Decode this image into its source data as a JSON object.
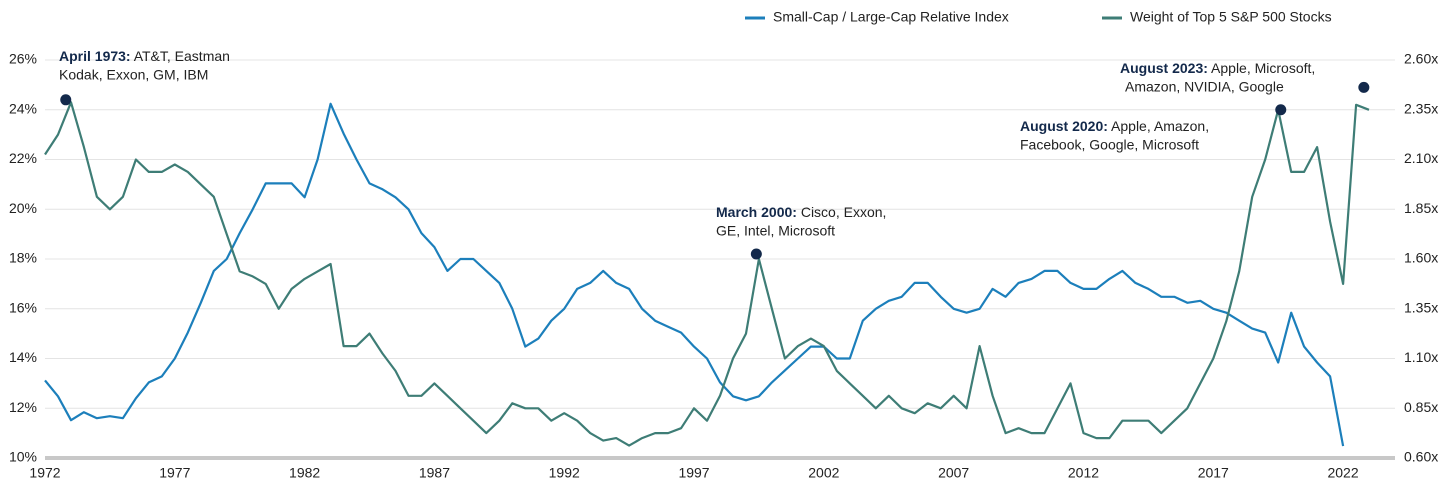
{
  "chart_data": {
    "type": "line",
    "x": [
      1972,
      1972.5,
      1973,
      1973.5,
      1974,
      1974.5,
      1975,
      1975.5,
      1976,
      1976.5,
      1977,
      1977.5,
      1978,
      1978.5,
      1979,
      1979.5,
      1980,
      1980.5,
      1981,
      1981.5,
      1982,
      1982.5,
      1983,
      1983.5,
      1984,
      1984.5,
      1985,
      1985.5,
      1986,
      1986.5,
      1987,
      1987.5,
      1988,
      1988.5,
      1989,
      1989.5,
      1990,
      1990.5,
      1991,
      1991.5,
      1992,
      1992.5,
      1993,
      1993.5,
      1994,
      1994.5,
      1995,
      1995.5,
      1996,
      1996.5,
      1997,
      1997.5,
      1998,
      1998.5,
      1999,
      1999.5,
      2000,
      2000.5,
      2001,
      2001.5,
      2002,
      2002.5,
      2003,
      2003.5,
      2004,
      2004.5,
      2005,
      2005.5,
      2006,
      2006.5,
      2007,
      2007.5,
      2008,
      2008.5,
      2009,
      2009.5,
      2010,
      2010.5,
      2011,
      2011.5,
      2012,
      2012.5,
      2013,
      2013.5,
      2014,
      2014.5,
      2015,
      2015.5,
      2016,
      2016.5,
      2017,
      2017.5,
      2018,
      2018.5,
      2019,
      2019.5,
      2020,
      2020.5,
      2021,
      2021.5,
      2022,
      2022.5,
      2023
    ],
    "series": [
      {
        "name": "Small-Cap / Large-Cap Relative Index",
        "color": "#1c7fbb",
        "axis": "y2",
        "values": [
          0.99,
          0.91,
          0.79,
          0.83,
          0.8,
          0.81,
          0.8,
          0.9,
          0.98,
          1.01,
          1.1,
          1.23,
          1.38,
          1.54,
          1.6,
          1.73,
          1.85,
          1.98,
          1.98,
          1.98,
          1.91,
          2.1,
          2.38,
          2.23,
          2.1,
          1.98,
          1.95,
          1.91,
          1.85,
          1.73,
          1.66,
          1.54,
          1.6,
          1.6,
          1.54,
          1.48,
          1.35,
          1.16,
          1.2,
          1.29,
          1.35,
          1.45,
          1.48,
          1.54,
          1.48,
          1.45,
          1.35,
          1.29,
          1.26,
          1.23,
          1.16,
          1.1,
          0.98,
          0.91,
          0.89,
          0.91,
          0.98,
          1.04,
          1.1,
          1.16,
          1.16,
          1.1,
          1.1,
          1.29,
          1.35,
          1.39,
          1.41,
          1.48,
          1.48,
          1.41,
          1.35,
          1.33,
          1.35,
          1.45,
          1.41,
          1.48,
          1.5,
          1.54,
          1.54,
          1.48,
          1.45,
          1.45,
          1.5,
          1.54,
          1.48,
          1.45,
          1.41,
          1.41,
          1.38,
          1.39,
          1.35,
          1.33,
          1.29,
          1.25,
          1.23,
          1.08,
          1.33,
          1.16,
          1.08,
          1.01,
          0.66,
          null,
          null
        ]
      },
      {
        "name": "Weight of Top 5 S&P 500 Stocks",
        "color": "#3e7d76",
        "values": [
          22.2,
          23.0,
          24.3,
          22.5,
          20.5,
          20.0,
          20.5,
          22.0,
          21.5,
          21.5,
          21.8,
          21.5,
          21.0,
          20.5,
          19.0,
          17.5,
          17.3,
          17.0,
          16.0,
          16.8,
          17.2,
          17.5,
          17.8,
          14.5,
          14.5,
          15.0,
          14.2,
          13.5,
          12.5,
          12.5,
          13.0,
          12.5,
          12.0,
          11.5,
          11.0,
          11.5,
          12.2,
          12.0,
          12.0,
          11.5,
          11.8,
          11.5,
          11.0,
          10.7,
          10.8,
          10.5,
          10.8,
          11.0,
          11.0,
          11.2,
          12.0,
          11.5,
          12.5,
          14.0,
          15.0,
          18.0,
          16.0,
          14.0,
          14.5,
          14.8,
          14.5,
          13.5,
          13.0,
          12.5,
          12.0,
          12.5,
          12.0,
          11.8,
          12.2,
          12.0,
          12.5,
          12.0,
          14.5,
          12.5,
          11.0,
          11.2,
          11.0,
          11.0,
          12.0,
          13.0,
          11.0,
          10.8,
          10.8,
          11.5,
          11.5,
          11.5,
          11.0,
          11.5,
          12.0,
          13.0,
          14.0,
          15.5,
          17.5,
          20.5,
          22.0,
          24.0,
          21.5,
          21.5,
          22.5,
          19.5,
          17.0,
          24.2,
          24.0
        ]
      }
    ],
    "xlim": [
      1972,
      2024
    ],
    "xticks": [
      1972,
      1977,
      1982,
      1987,
      1992,
      1997,
      2002,
      2007,
      2012,
      2017,
      2022
    ],
    "ylim": [
      10,
      26
    ],
    "yticks": [
      {
        "value": 10,
        "label": "10%"
      },
      {
        "value": 12,
        "label": "12%"
      },
      {
        "value": 14,
        "label": "14%"
      },
      {
        "value": 16,
        "label": "16%"
      },
      {
        "value": 18,
        "label": "18%"
      },
      {
        "value": 20,
        "label": "20%"
      },
      {
        "value": 22,
        "label": "22%"
      },
      {
        "value": 24,
        "label": "24%"
      },
      {
        "value": 26,
        "label": "26%"
      }
    ],
    "y2lim": [
      0.6,
      2.6
    ],
    "y2ticks": [
      {
        "value": 0.6,
        "label": "0.60x"
      },
      {
        "value": 0.85,
        "label": "0.85x"
      },
      {
        "value": 1.1,
        "label": "1.10x"
      },
      {
        "value": 1.35,
        "label": "1.35x"
      },
      {
        "value": 1.6,
        "label": "1.60x"
      },
      {
        "value": 1.85,
        "label": "1.85x"
      },
      {
        "value": 2.1,
        "label": "2.10x"
      },
      {
        "value": 2.35,
        "label": "2.35x"
      },
      {
        "value": 2.6,
        "label": "2.60x"
      }
    ],
    "grid": true,
    "legend": "top-right",
    "annotations": [
      {
        "bold": "April 1973:",
        "lines": [
          " AT&T, Eastman",
          "Kodak, Exxon, GM, IBM"
        ],
        "x": 1972.8,
        "y": 24.4
      },
      {
        "bold": "March 2000:",
        "lines": [
          " Cisco, Exxon,",
          "GE, Intel, Microsoft"
        ],
        "x": 1999.4,
        "y": 18.2
      },
      {
        "bold": "August 2020:",
        "lines": [
          " Apple, Amazon,",
          "Facebook, Google, Microsoft"
        ],
        "x": 2019.6,
        "y": 24.0
      },
      {
        "bold": "August 2023:",
        "lines": [
          " Apple, Microsoft,",
          "Amazon, NVIDIA, Google"
        ],
        "x": 2022.8,
        "y": 24.9
      }
    ]
  }
}
